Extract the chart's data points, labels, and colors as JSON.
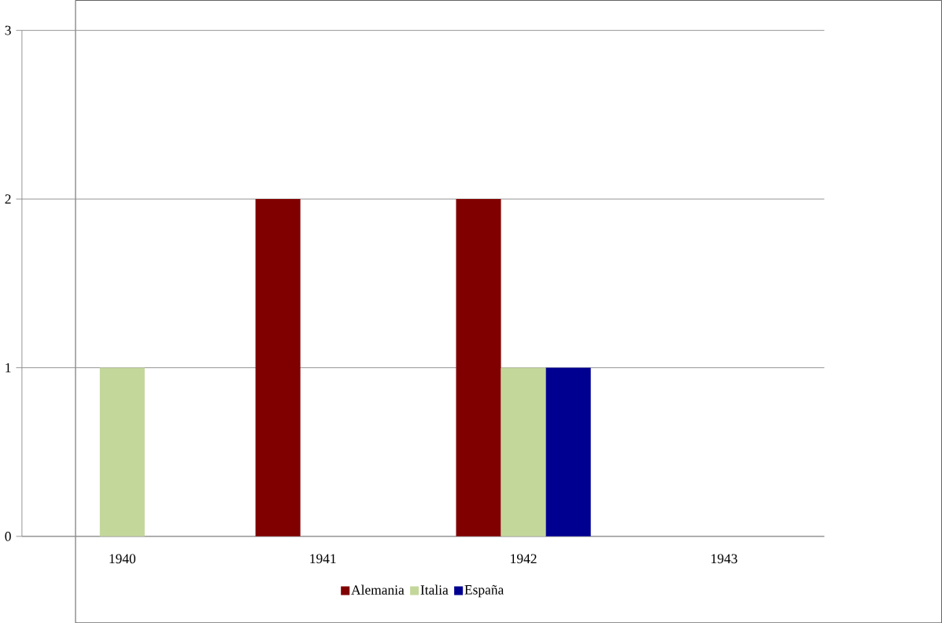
{
  "chart_data": {
    "type": "bar",
    "categories": [
      "1940",
      "1941",
      "1942",
      "1943"
    ],
    "series": [
      {
        "name": "Alemania",
        "color": "#800000",
        "values": [
          0,
          2,
          2,
          0
        ]
      },
      {
        "name": "Italia",
        "color": "#c4d79b",
        "values": [
          1,
          0,
          1,
          0
        ]
      },
      {
        "name": "España",
        "color": "#000090",
        "values": [
          0,
          0,
          1,
          0
        ]
      }
    ],
    "ylim": [
      0,
      3
    ],
    "yticks": [
      0,
      1,
      2,
      3
    ],
    "grid": "y",
    "legend": "bottom"
  }
}
